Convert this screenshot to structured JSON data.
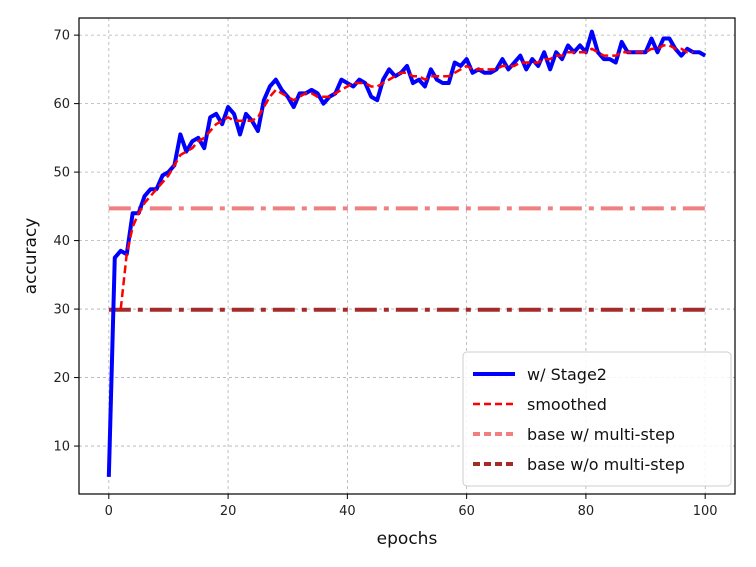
{
  "chart_data": {
    "type": "line",
    "xlabel": "epochs",
    "ylabel": "accuracy",
    "xlim": [
      -5,
      105
    ],
    "ylim": [
      3,
      72.5
    ],
    "xticks": [
      0,
      20,
      40,
      60,
      80,
      100
    ],
    "yticks": [
      10,
      20,
      30,
      40,
      50,
      60,
      70
    ],
    "grid": true,
    "legend_position": "lower-right",
    "series": [
      {
        "name": "w/ Stage2",
        "style": "solid",
        "color": "#0000ff",
        "x": [
          0,
          1,
          2,
          3,
          4,
          5,
          6,
          7,
          8,
          9,
          10,
          11,
          12,
          13,
          14,
          15,
          16,
          17,
          18,
          19,
          20,
          21,
          22,
          23,
          24,
          25,
          26,
          27,
          28,
          29,
          30,
          31,
          32,
          33,
          34,
          35,
          36,
          37,
          38,
          39,
          40,
          41,
          42,
          43,
          44,
          45,
          46,
          47,
          48,
          49,
          50,
          51,
          52,
          53,
          54,
          55,
          56,
          57,
          58,
          59,
          60,
          61,
          62,
          63,
          64,
          65,
          66,
          67,
          68,
          69,
          70,
          71,
          72,
          73,
          74,
          75,
          76,
          77,
          78,
          79,
          80,
          81,
          82,
          83,
          84,
          85,
          86,
          87,
          88,
          89,
          90,
          91,
          92,
          93,
          94,
          95,
          96,
          97,
          98,
          99,
          100
        ],
        "y": [
          5.5,
          37.5,
          38.5,
          38.0,
          44.0,
          44.0,
          46.5,
          47.5,
          47.5,
          49.5,
          50.0,
          51.0,
          55.5,
          53.0,
          54.5,
          55.0,
          53.5,
          58.0,
          58.5,
          57.0,
          59.5,
          58.5,
          55.5,
          58.5,
          57.5,
          56.0,
          60.5,
          62.5,
          63.5,
          62.0,
          61.0,
          59.5,
          61.5,
          61.5,
          62.0,
          61.5,
          60.0,
          61.0,
          61.5,
          63.5,
          63.0,
          62.5,
          63.5,
          63.0,
          61.0,
          60.5,
          63.5,
          65.0,
          64.0,
          64.5,
          65.5,
          63.0,
          63.5,
          62.5,
          65.0,
          63.5,
          63.0,
          63.0,
          66.0,
          65.5,
          66.5,
          64.5,
          65.0,
          64.5,
          64.5,
          65.0,
          66.5,
          65.0,
          66.0,
          67.0,
          65.0,
          66.5,
          65.5,
          67.5,
          65.0,
          67.5,
          66.5,
          68.5,
          67.5,
          68.5,
          67.5,
          70.5,
          67.5,
          66.5,
          66.5,
          66.0,
          69.0,
          67.5,
          67.5,
          67.5,
          67.5,
          69.5,
          67.5,
          69.5,
          69.5,
          68.0,
          67.0,
          68.0,
          67.5,
          67.5,
          67.0
        ]
      },
      {
        "name": "smoothed",
        "style": "dashed",
        "color": "#ff0000",
        "x": [
          2,
          3,
          4,
          5,
          6,
          7,
          8,
          9,
          10,
          11,
          12,
          13,
          14,
          15,
          16,
          17,
          18,
          19,
          20,
          21,
          22,
          23,
          24,
          25,
          26,
          27,
          28,
          29,
          30,
          31,
          32,
          33,
          34,
          35,
          36,
          37,
          38,
          39,
          40,
          41,
          42,
          43,
          44,
          45,
          46,
          47,
          48,
          49,
          50,
          51,
          52,
          53,
          54,
          55,
          56,
          57,
          58,
          59,
          60,
          61,
          62,
          63,
          64,
          65,
          66,
          67,
          68,
          69,
          70,
          71,
          72,
          73,
          74,
          75,
          76,
          77,
          78,
          79,
          80,
          81,
          82,
          83,
          84,
          85,
          86,
          87,
          88,
          89,
          90,
          91,
          92,
          93,
          94,
          95,
          96,
          97,
          98
        ],
        "y": [
          30.0,
          38.0,
          42.0,
          44.0,
          45.5,
          46.5,
          47.5,
          48.5,
          49.5,
          51.0,
          52.5,
          53.0,
          53.5,
          54.5,
          55.0,
          56.0,
          57.0,
          57.5,
          58.0,
          57.5,
          57.5,
          57.5,
          57.5,
          58.0,
          59.5,
          61.0,
          62.0,
          61.5,
          61.0,
          60.5,
          61.0,
          61.5,
          61.5,
          61.0,
          61.0,
          61.0,
          61.5,
          62.0,
          62.5,
          63.0,
          63.0,
          63.0,
          62.5,
          62.5,
          63.0,
          63.5,
          64.0,
          64.5,
          64.5,
          64.0,
          64.0,
          63.5,
          64.0,
          64.0,
          64.0,
          64.0,
          64.5,
          65.0,
          65.5,
          65.0,
          65.0,
          65.0,
          65.0,
          65.0,
          65.5,
          65.5,
          65.5,
          66.0,
          66.0,
          66.0,
          66.0,
          66.5,
          66.5,
          67.0,
          67.0,
          67.5,
          67.5,
          67.5,
          67.5,
          68.0,
          67.5,
          67.0,
          67.0,
          67.0,
          67.5,
          67.5,
          67.5,
          67.5,
          67.5,
          68.0,
          68.0,
          68.5,
          68.5,
          68.0,
          68.0,
          67.5,
          67.5
        ]
      },
      {
        "name": "base w/ multi-step",
        "style": "dashdot",
        "color": "#f08080",
        "x": [
          0,
          100
        ],
        "y": [
          44.7,
          44.7
        ]
      },
      {
        "name": "base w/o multi-step",
        "style": "dashdot",
        "color": "#a52a2a",
        "x": [
          0,
          100
        ],
        "y": [
          29.9,
          29.9
        ]
      }
    ]
  }
}
